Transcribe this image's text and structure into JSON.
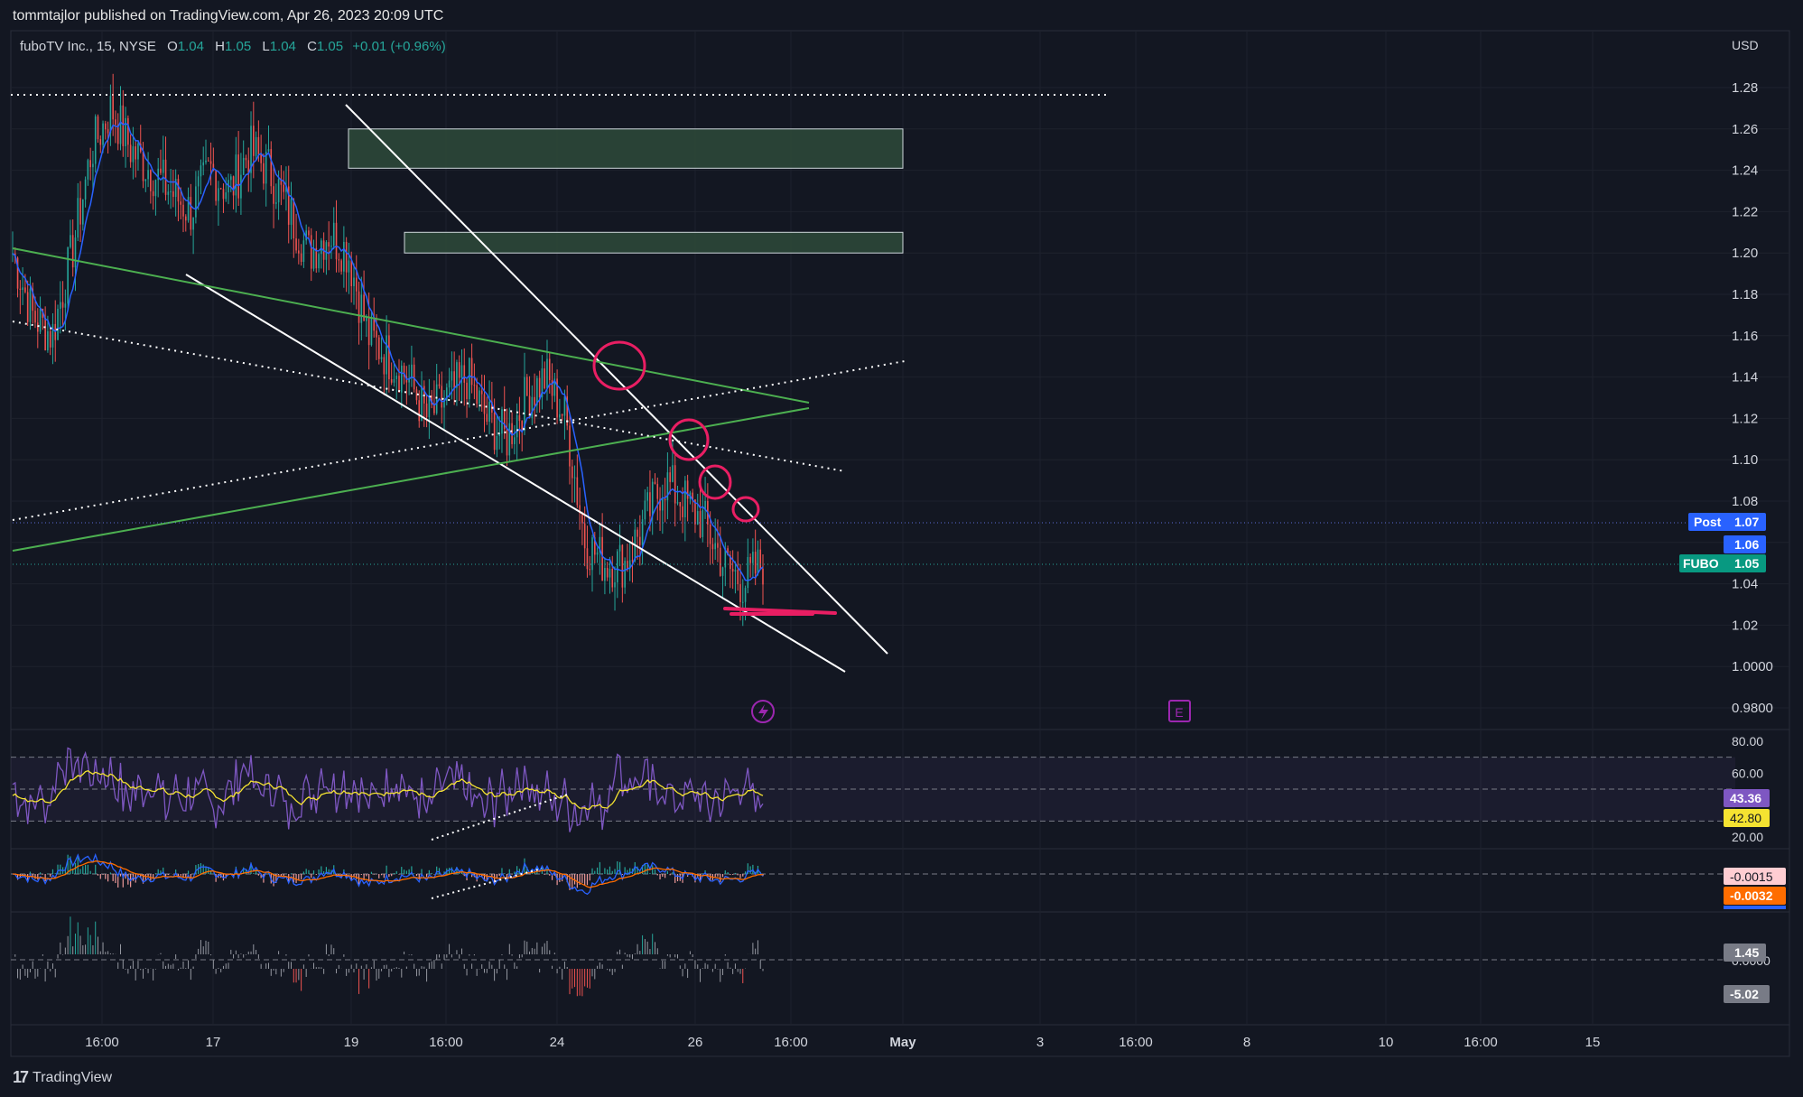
{
  "header": {
    "published": "tommtajlor published on TradingView.com, Apr 26, 2023 20:09 UTC"
  },
  "legend": {
    "symbol": "fuboTV Inc., 15, NYSE",
    "o_label": "O",
    "o": "1.04",
    "h_label": "H",
    "h": "1.05",
    "l_label": "L",
    "l": "1.04",
    "c_label": "C",
    "c": "1.05",
    "change": "+0.01 (+0.96%)"
  },
  "brand": {
    "logo": "17",
    "name": "TradingView"
  },
  "colors": {
    "bg": "#131722",
    "up": "#26a69a",
    "down": "#ef5350",
    "ma": "#2962ff",
    "rsi": "#7e57c2",
    "rsi_ma": "#f5e331",
    "macd_signal": "#ff6d00",
    "annotation": "#e91e63",
    "zone": "#2e4a3a",
    "green_line": "#4caf50"
  },
  "chart_data": [
    {
      "type": "candlestick",
      "title": "",
      "currency": "USD",
      "y_ticks": [
        "1.28",
        "1.26",
        "1.24",
        "1.22",
        "1.20",
        "1.18",
        "1.16",
        "1.14",
        "1.12",
        "1.10",
        "1.08",
        "1.06",
        "1.04",
        "1.02",
        "1.0000",
        "0.9800"
      ],
      "x_ticks": [
        "16:00",
        "17",
        "19",
        "16:00",
        "24",
        "26",
        "16:00",
        "May",
        "3",
        "16:00",
        "8",
        "10",
        "16:00",
        "15"
      ],
      "ylim": [
        0.97,
        1.29
      ],
      "close_path": [
        1.2,
        1.17,
        1.16,
        1.2,
        1.25,
        1.27,
        1.25,
        1.24,
        1.23,
        1.22,
        1.24,
        1.23,
        1.25,
        1.24,
        1.22,
        1.2,
        1.21,
        1.2,
        1.16,
        1.15,
        1.14,
        1.12,
        1.13,
        1.14,
        1.12,
        1.11,
        1.13,
        1.14,
        1.12,
        1.06,
        1.05,
        1.05,
        1.07,
        1.09,
        1.08,
        1.07,
        1.05,
        1.04,
        1.05
      ],
      "price_labels": [
        {
          "label": "Post",
          "value": "1.07",
          "price": 1.07
        },
        {
          "label": "",
          "value": "1.06",
          "price": 1.06
        },
        {
          "label": "FUBO",
          "value": "1.05",
          "price": 1.05
        }
      ],
      "zones": [
        {
          "top": 1.26,
          "bottom": 1.241
        },
        {
          "top": 1.21,
          "bottom": 1.2
        }
      ],
      "markers": [
        "lightning-icon",
        "earnings-icon"
      ],
      "marker_text": {
        "earnings": "E"
      }
    },
    {
      "type": "line",
      "title": "",
      "y_ticks": [
        "80.00",
        "60.00",
        "20.00"
      ],
      "levels": [
        70,
        50,
        30
      ],
      "values": [
        {
          "label": "",
          "value": "43.36"
        },
        {
          "label": "",
          "value": "42.80"
        }
      ]
    },
    {
      "type": "bar",
      "title": "",
      "values": [
        {
          "value": "-0.0015"
        },
        {
          "value": "-0.0032"
        }
      ]
    },
    {
      "type": "bar",
      "title": "",
      "values": [
        {
          "value": "1.45"
        },
        {
          "value": "-5.02"
        }
      ],
      "y_ticks": [
        "0.0000"
      ]
    }
  ]
}
